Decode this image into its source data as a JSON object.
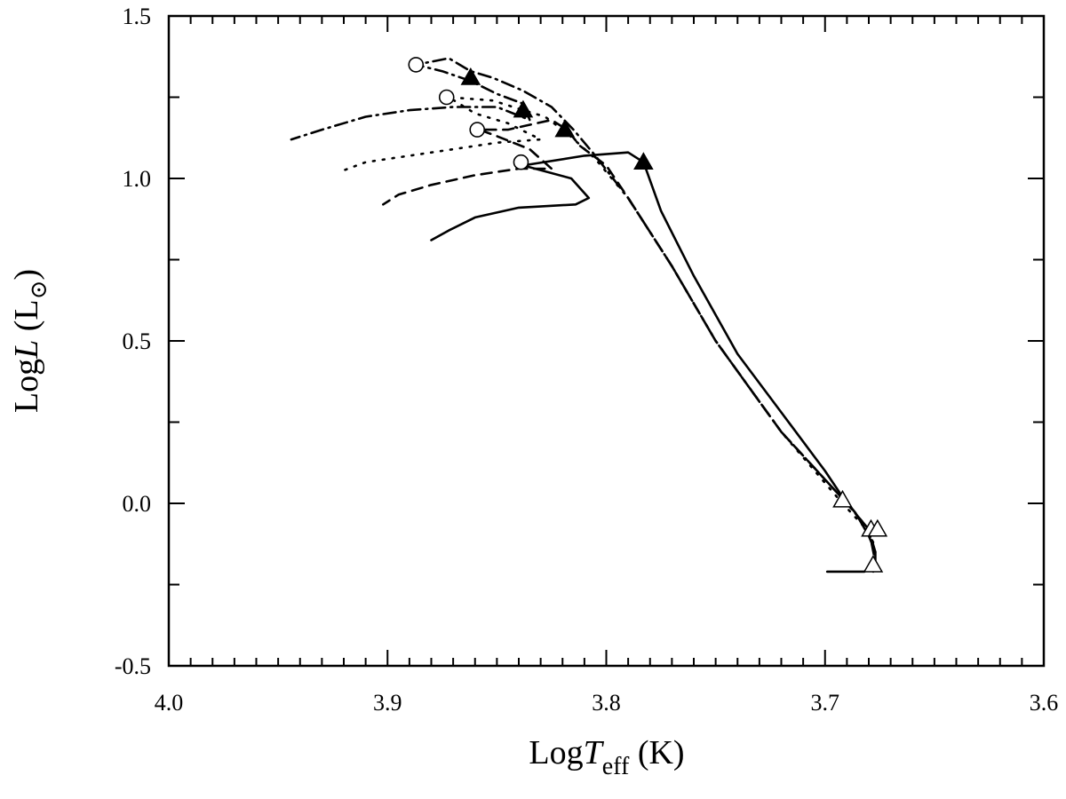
{
  "chart_data": {
    "type": "line",
    "title": "",
    "xlabel": {
      "prefix": "Log",
      "var": "T",
      "sub": "eff",
      "unit": " (K)"
    },
    "ylabel": {
      "prefix": "Log",
      "var": "L",
      "unit_open": " (L",
      "unit_symbol": "⊙",
      "unit_close": ")"
    },
    "xlim": [
      4.0,
      3.6
    ],
    "ylim": [
      -0.5,
      1.5
    ],
    "x_reversed": true,
    "grid": false,
    "legend": "none",
    "x_ticks": [
      4.0,
      3.9,
      3.8,
      3.7,
      3.6
    ],
    "x_tick_labels": [
      "4.0",
      "3.9",
      "3.8",
      "3.7",
      "3.6"
    ],
    "y_ticks": [
      1.5,
      1.0,
      0.5,
      0.0,
      -0.5
    ],
    "y_tick_labels": [
      "1.5",
      "1.0",
      "0.5",
      "0.0",
      "-0.5"
    ],
    "series": [
      {
        "line_style": "solid",
        "points": [
          [
            3.699,
            -0.21
          ],
          [
            3.682,
            -0.21
          ],
          [
            3.677,
            -0.19
          ],
          [
            3.677,
            -0.15
          ],
          [
            3.68,
            -0.1
          ],
          [
            3.686,
            -0.03
          ],
          [
            3.692,
            0.02
          ],
          [
            3.7,
            0.1
          ],
          [
            3.72,
            0.28
          ],
          [
            3.74,
            0.46
          ],
          [
            3.76,
            0.7
          ],
          [
            3.775,
            0.9
          ],
          [
            3.783,
            1.05
          ],
          [
            3.79,
            1.08
          ],
          [
            3.81,
            1.07
          ],
          [
            3.838,
            1.04
          ],
          [
            3.816,
            1.0
          ],
          [
            3.808,
            0.94
          ],
          [
            3.814,
            0.92
          ],
          [
            3.84,
            0.91
          ],
          [
            3.86,
            0.88
          ],
          [
            3.872,
            0.84
          ],
          [
            3.88,
            0.81
          ]
        ]
      },
      {
        "line_style": "dashed",
        "points": [
          [
            3.678,
            -0.21
          ],
          [
            3.677,
            -0.18
          ],
          [
            3.68,
            -0.08
          ],
          [
            3.69,
            0.0
          ],
          [
            3.72,
            0.22
          ],
          [
            3.75,
            0.5
          ],
          [
            3.77,
            0.73
          ],
          [
            3.79,
            0.94
          ],
          [
            3.8,
            1.04
          ],
          [
            3.812,
            1.1
          ],
          [
            3.818,
            1.15
          ],
          [
            3.825,
            1.18
          ],
          [
            3.845,
            1.15
          ],
          [
            3.858,
            1.15
          ],
          [
            3.85,
            1.13
          ],
          [
            3.835,
            1.09
          ],
          [
            3.825,
            1.03
          ],
          [
            3.84,
            1.03
          ],
          [
            3.86,
            1.01
          ],
          [
            3.88,
            0.98
          ],
          [
            3.895,
            0.95
          ],
          [
            3.902,
            0.92
          ]
        ]
      },
      {
        "line_style": "dotted",
        "points": [
          [
            3.678,
            -0.12
          ],
          [
            3.681,
            -0.08
          ],
          [
            3.692,
            0.0
          ],
          [
            3.72,
            0.22
          ],
          [
            3.75,
            0.5
          ],
          [
            3.77,
            0.73
          ],
          [
            3.79,
            0.94
          ],
          [
            3.805,
            1.06
          ],
          [
            3.818,
            1.14
          ],
          [
            3.828,
            1.19
          ],
          [
            3.838,
            1.21
          ],
          [
            3.852,
            1.24
          ],
          [
            3.872,
            1.25
          ],
          [
            3.86,
            1.2
          ],
          [
            3.845,
            1.17
          ],
          [
            3.83,
            1.12
          ],
          [
            3.85,
            1.11
          ],
          [
            3.87,
            1.09
          ],
          [
            3.89,
            1.07
          ],
          [
            3.91,
            1.05
          ],
          [
            3.922,
            1.02
          ]
        ]
      },
      {
        "line_style": "dashdot",
        "points": [
          [
            3.677,
            -0.15
          ],
          [
            3.68,
            -0.08
          ],
          [
            3.69,
            0.0
          ],
          [
            3.72,
            0.22
          ],
          [
            3.75,
            0.5
          ],
          [
            3.77,
            0.73
          ],
          [
            3.79,
            0.94
          ],
          [
            3.805,
            1.07
          ],
          [
            3.815,
            1.15
          ],
          [
            3.825,
            1.22
          ],
          [
            3.838,
            1.27
          ],
          [
            3.852,
            1.31
          ],
          [
            3.862,
            1.33
          ],
          [
            3.872,
            1.37
          ],
          [
            3.887,
            1.35
          ],
          [
            3.875,
            1.33
          ],
          [
            3.862,
            1.3
          ],
          [
            3.85,
            1.26
          ],
          [
            3.838,
            1.23
          ],
          [
            3.835,
            1.18
          ],
          [
            3.85,
            1.22
          ],
          [
            3.87,
            1.22
          ],
          [
            3.89,
            1.21
          ],
          [
            3.91,
            1.19
          ],
          [
            3.93,
            1.15
          ],
          [
            3.944,
            1.12
          ]
        ]
      }
    ],
    "markers": {
      "open_circles": [
        [
          3.887,
          1.35
        ],
        [
          3.873,
          1.25
        ],
        [
          3.859,
          1.15
        ],
        [
          3.839,
          1.05
        ]
      ],
      "filled_triangles": [
        [
          3.862,
          1.31
        ],
        [
          3.838,
          1.21
        ],
        [
          3.819,
          1.15
        ],
        [
          3.783,
          1.05
        ]
      ],
      "open_triangles": [
        [
          3.692,
          0.01
        ],
        [
          3.679,
          -0.08
        ],
        [
          3.676,
          -0.08
        ],
        [
          3.678,
          -0.19
        ]
      ]
    }
  }
}
